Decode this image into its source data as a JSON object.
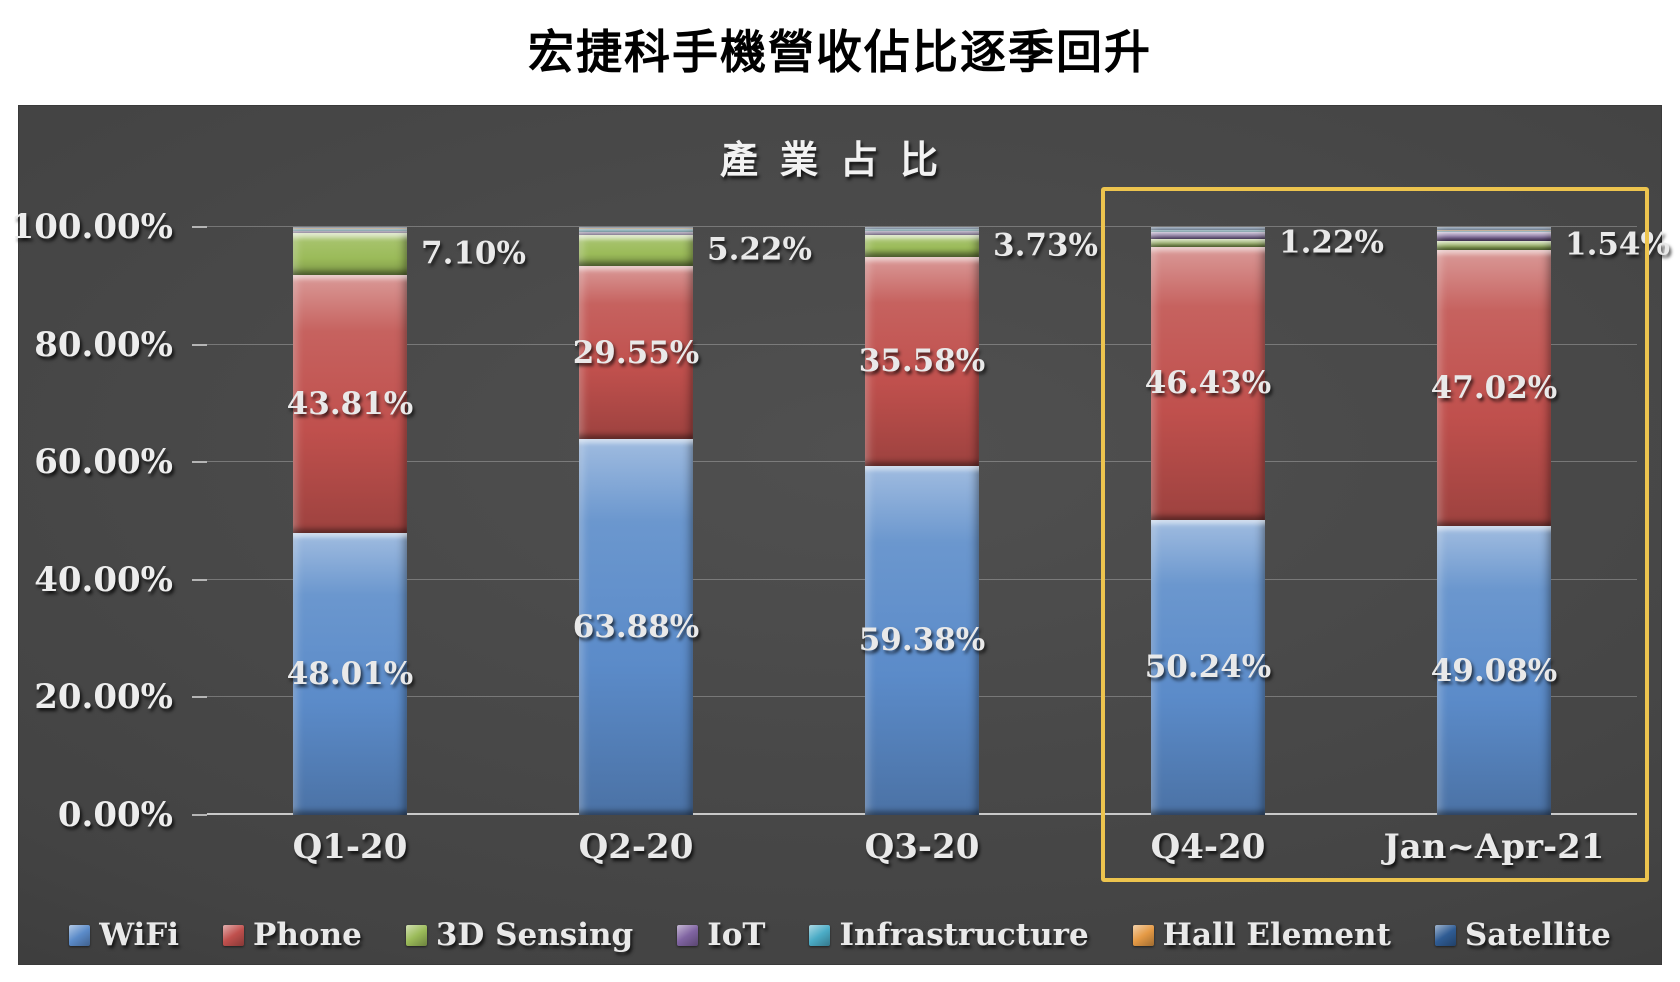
{
  "page": {
    "title": "宏捷科手機營收佔比逐季回升"
  },
  "chart_data": {
    "type": "bar",
    "stacked": true,
    "title": "產業占比",
    "categories": [
      "Q1-20",
      "Q2-20",
      "Q3-20",
      "Q4-20",
      "Jan~Apr-21"
    ],
    "xlabel": "",
    "ylabel": "",
    "ylim": [
      0,
      100
    ],
    "grid": true,
    "legend_position": "bottom",
    "yticks": [
      {
        "value": 0,
        "label": "0.00%"
      },
      {
        "value": 20,
        "label": "20.00%"
      },
      {
        "value": 40,
        "label": "40.00%"
      },
      {
        "value": 60,
        "label": "60.00%"
      },
      {
        "value": 80,
        "label": "80.00%"
      },
      {
        "value": 100,
        "label": "100.00%"
      }
    ],
    "series": [
      {
        "name": "WiFi",
        "color": "#5b8bc9",
        "label_position": "inside",
        "values": [
          48.01,
          63.88,
          59.38,
          50.24,
          49.08
        ],
        "labels": [
          "48.01%",
          "63.88%",
          "59.38%",
          "50.24%",
          "49.08%"
        ]
      },
      {
        "name": "Phone",
        "color": "#c0504d",
        "label_position": "inside",
        "values": [
          43.81,
          29.55,
          35.58,
          46.43,
          47.02
        ],
        "labels": [
          "43.81%",
          "29.55%",
          "35.58%",
          "46.43%",
          "47.02%"
        ]
      },
      {
        "name": "3D Sensing",
        "color": "#9bbb59",
        "label_position": "outside-right",
        "values": [
          7.1,
          5.22,
          3.73,
          1.22,
          1.54
        ],
        "labels": [
          "7.10%",
          "5.22%",
          "3.73%",
          "1.22%",
          "1.54%"
        ]
      },
      {
        "name": "IoT",
        "color": "#8064a2",
        "label_position": "none",
        "values": [
          0.45,
          0.55,
          0.6,
          1.3,
          1.5
        ]
      },
      {
        "name": "Infrastructure",
        "color": "#4bacc6",
        "label_position": "none",
        "values": [
          0.35,
          0.5,
          0.35,
          0.3,
          0.25
        ]
      },
      {
        "name": "Hall Element",
        "color": "#e59a45",
        "label_position": "none",
        "values": [
          0.05,
          0.05,
          0.06,
          0.08,
          0.1
        ]
      },
      {
        "name": "Satellite",
        "color": "#2f5c94",
        "label_position": "none",
        "values": [
          0.23,
          0.25,
          0.3,
          0.43,
          0.51
        ]
      }
    ],
    "highlight_box": {
      "from_category": "Q4-20",
      "to_category": "Jan~Apr-21",
      "color": "#edc44e"
    }
  }
}
